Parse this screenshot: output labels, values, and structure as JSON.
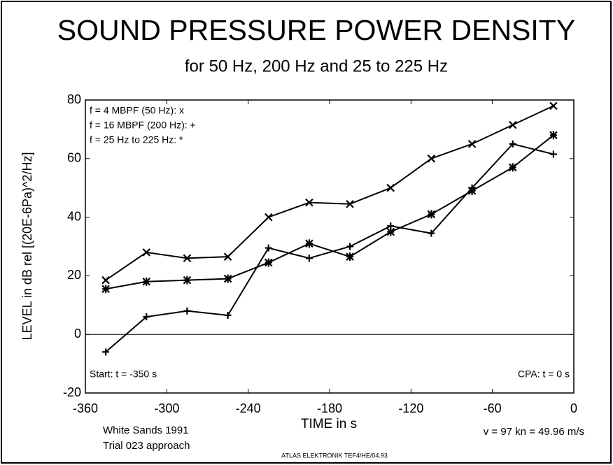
{
  "chart_data": {
    "type": "line",
    "title": "SOUND PRESSURE POWER DENSITY",
    "subtitle": "for 50 Hz, 200 Hz and 25 to 225 Hz",
    "x_label": "TIME in s",
    "y_label": "LEVEL in dB rel [(20E-6Pa)^2/Hz]",
    "x": [
      -345,
      -315,
      -285,
      -255,
      -225,
      -195,
      -165,
      -135,
      -105,
      -75,
      -45,
      -15
    ],
    "series": [
      {
        "name": "f = 4 MBPF (50 Hz): x",
        "color": "#000000",
        "marker": "x",
        "values": [
          18.5,
          28,
          26,
          26.5,
          40,
          45,
          44.5,
          50,
          60,
          65,
          71.5,
          78
        ]
      },
      {
        "name": "f = 16 MBPF (200 Hz): +",
        "color": "#000000",
        "marker": "+",
        "values": [
          -6,
          6,
          8,
          6.5,
          29.5,
          26,
          30,
          37,
          34.5,
          50,
          65,
          61.5
        ]
      },
      {
        "name": "f = 25 Hz to 225 Hz: *",
        "color": "#000000",
        "marker": "*",
        "values": [
          15.5,
          18,
          18.5,
          19,
          24.5,
          31,
          26.5,
          35,
          41,
          49,
          57,
          68
        ]
      }
    ],
    "xlim": [
      -360,
      0
    ],
    "xticks": [
      -360,
      -300,
      -240,
      -180,
      -120,
      -60,
      0
    ],
    "ylim": [
      -20,
      80
    ],
    "yticks": [
      -20,
      0,
      20,
      40,
      60,
      80
    ],
    "zero_line": true,
    "legend": "top-left",
    "annotations": [
      "Start: t = -350 s",
      "CPA: t = 0 s"
    ],
    "footer": [
      "White Sands 1991",
      "Trial 023 approach",
      "v = 97 kn  = 49.96 m/s",
      "ATLAS ELEKTRONIK TEF4/HE/04.93"
    ]
  }
}
